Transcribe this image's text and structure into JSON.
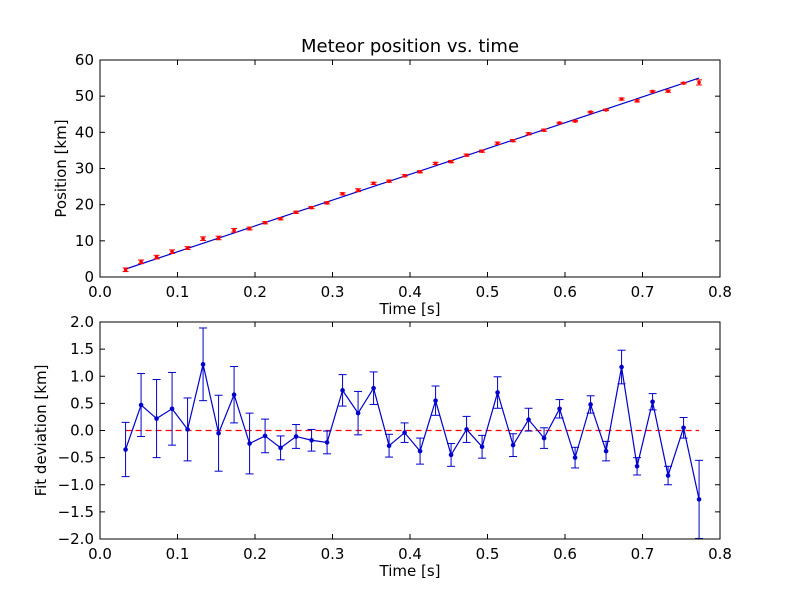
{
  "chart_data": [
    {
      "type": "scatter",
      "title": "Meteor position vs. time",
      "xlabel": "Time [s]",
      "ylabel": "Position [km]",
      "xlim": [
        0.0,
        0.8
      ],
      "ylim": [
        0,
        60
      ],
      "xticks": [
        "0.0",
        "0.1",
        "0.2",
        "0.3",
        "0.4",
        "0.5",
        "0.6",
        "0.7",
        "0.8"
      ],
      "yticks": [
        "0",
        "10",
        "20",
        "30",
        "40",
        "50",
        "60"
      ],
      "grid": false,
      "fit_line": {
        "x": [
          0.033,
          0.773
        ],
        "y": [
          2.2,
          55.0
        ],
        "color": "#0000cc"
      },
      "marker_color": "#ff0000",
      "x": [
        0.033,
        0.053,
        0.073,
        0.093,
        0.113,
        0.133,
        0.153,
        0.173,
        0.193,
        0.213,
        0.233,
        0.253,
        0.273,
        0.293,
        0.313,
        0.333,
        0.353,
        0.373,
        0.393,
        0.413,
        0.433,
        0.453,
        0.473,
        0.493,
        0.513,
        0.533,
        0.553,
        0.573,
        0.593,
        0.613,
        0.633,
        0.653,
        0.673,
        0.693,
        0.713,
        0.733,
        0.753,
        0.773
      ],
      "y": [
        2.0,
        4.2,
        5.5,
        7.0,
        8.0,
        10.6,
        10.8,
        12.9,
        13.4,
        15.0,
        16.1,
        17.9,
        19.2,
        20.5,
        23.0,
        24.0,
        25.9,
        26.5,
        28.0,
        29.1,
        31.4,
        31.9,
        33.7,
        34.8,
        37.0,
        37.7,
        39.6,
        40.6,
        42.6,
        43.1,
        45.6,
        46.2,
        49.2,
        48.7,
        51.3,
        51.4,
        53.6,
        53.8
      ],
      "yerr": [
        0.5,
        0.5,
        0.5,
        0.5,
        0.4,
        0.5,
        0.5,
        0.5,
        0.4,
        0.3,
        0.3,
        0.3,
        0.3,
        0.3,
        0.3,
        0.4,
        0.3,
        0.3,
        0.3,
        0.3,
        0.3,
        0.3,
        0.3,
        0.3,
        0.3,
        0.3,
        0.3,
        0.3,
        0.2,
        0.2,
        0.2,
        0.2,
        0.3,
        0.3,
        0.2,
        0.3,
        0.2,
        0.7
      ]
    },
    {
      "type": "line",
      "xlabel": "Time [s]",
      "ylabel": "Fit deviation [km]",
      "xlim": [
        0.0,
        0.8
      ],
      "ylim": [
        -2.0,
        2.0
      ],
      "xticks": [
        "0.0",
        "0.1",
        "0.2",
        "0.3",
        "0.4",
        "0.5",
        "0.6",
        "0.7",
        "0.8"
      ],
      "yticks": [
        "−2.0",
        "−1.5",
        "−1.0",
        "−0.5",
        "0.0",
        "0.5",
        "1.0",
        "1.5",
        "2.0"
      ],
      "grid": false,
      "zero_line": {
        "y": 0.0,
        "style": "dashed",
        "color": "#ff0000"
      },
      "line_color": "#0000cc",
      "x": [
        0.033,
        0.053,
        0.073,
        0.093,
        0.113,
        0.133,
        0.153,
        0.173,
        0.193,
        0.213,
        0.233,
        0.253,
        0.273,
        0.293,
        0.313,
        0.333,
        0.353,
        0.373,
        0.393,
        0.413,
        0.433,
        0.453,
        0.473,
        0.493,
        0.513,
        0.533,
        0.553,
        0.573,
        0.593,
        0.613,
        0.633,
        0.653,
        0.673,
        0.693,
        0.713,
        0.733,
        0.753,
        0.773
      ],
      "y": [
        -0.35,
        0.47,
        0.22,
        0.4,
        0.02,
        1.22,
        -0.05,
        0.66,
        -0.24,
        -0.1,
        -0.32,
        -0.11,
        -0.18,
        -0.22,
        0.74,
        0.32,
        0.78,
        -0.28,
        -0.04,
        -0.38,
        0.55,
        -0.45,
        0.02,
        -0.3,
        0.7,
        -0.27,
        0.2,
        -0.14,
        0.4,
        -0.5,
        0.48,
        -0.38,
        1.17,
        -0.66,
        0.53,
        -0.83,
        0.05,
        -1.27
      ],
      "yerr": [
        0.5,
        0.58,
        0.72,
        0.67,
        0.58,
        0.67,
        0.7,
        0.52,
        0.56,
        0.31,
        0.22,
        0.22,
        0.2,
        0.21,
        0.29,
        0.4,
        0.3,
        0.21,
        0.18,
        0.24,
        0.27,
        0.21,
        0.24,
        0.21,
        0.29,
        0.21,
        0.21,
        0.19,
        0.17,
        0.19,
        0.16,
        0.18,
        0.31,
        0.16,
        0.15,
        0.17,
        0.19,
        0.72
      ]
    }
  ]
}
